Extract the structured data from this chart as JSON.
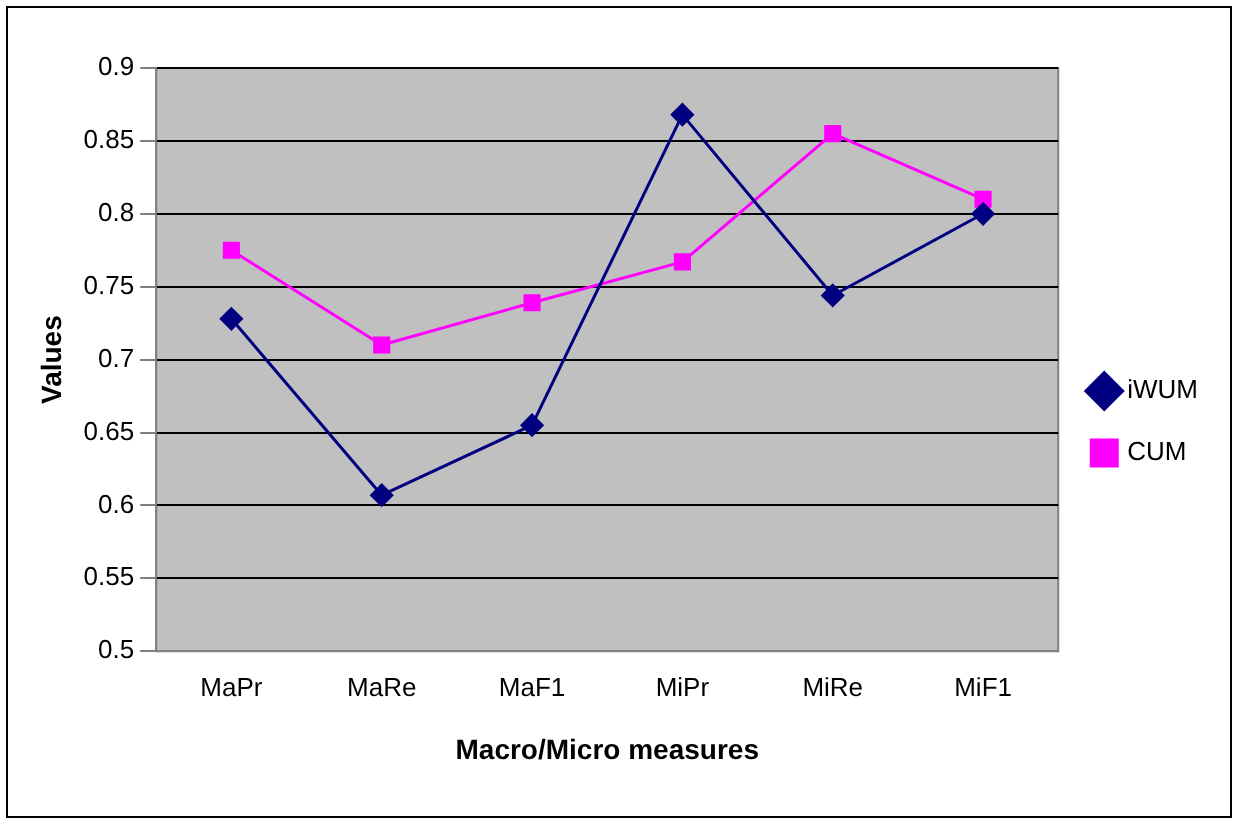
{
  "chart_data": {
    "type": "line",
    "xlabel": "Macro/Micro measures",
    "ylabel": "Values",
    "categories": [
      "MaPr",
      "MaRe",
      "MaF1",
      "MiPr",
      "MiRe",
      "MiF1"
    ],
    "series": [
      {
        "name": "iWUM",
        "color": "#000080",
        "marker": "diamond",
        "values": [
          0.728,
          0.607,
          0.655,
          0.868,
          0.744,
          0.8
        ]
      },
      {
        "name": "CUM",
        "color": "#ff00ff",
        "marker": "square",
        "values": [
          0.775,
          0.71,
          0.739,
          0.767,
          0.855,
          0.81
        ]
      }
    ],
    "ylim": [
      0.5,
      0.9
    ],
    "yticks": [
      0.5,
      0.55,
      0.6,
      0.65,
      0.7,
      0.75,
      0.8,
      0.85,
      0.9
    ],
    "grid": "y",
    "legend": "right"
  }
}
